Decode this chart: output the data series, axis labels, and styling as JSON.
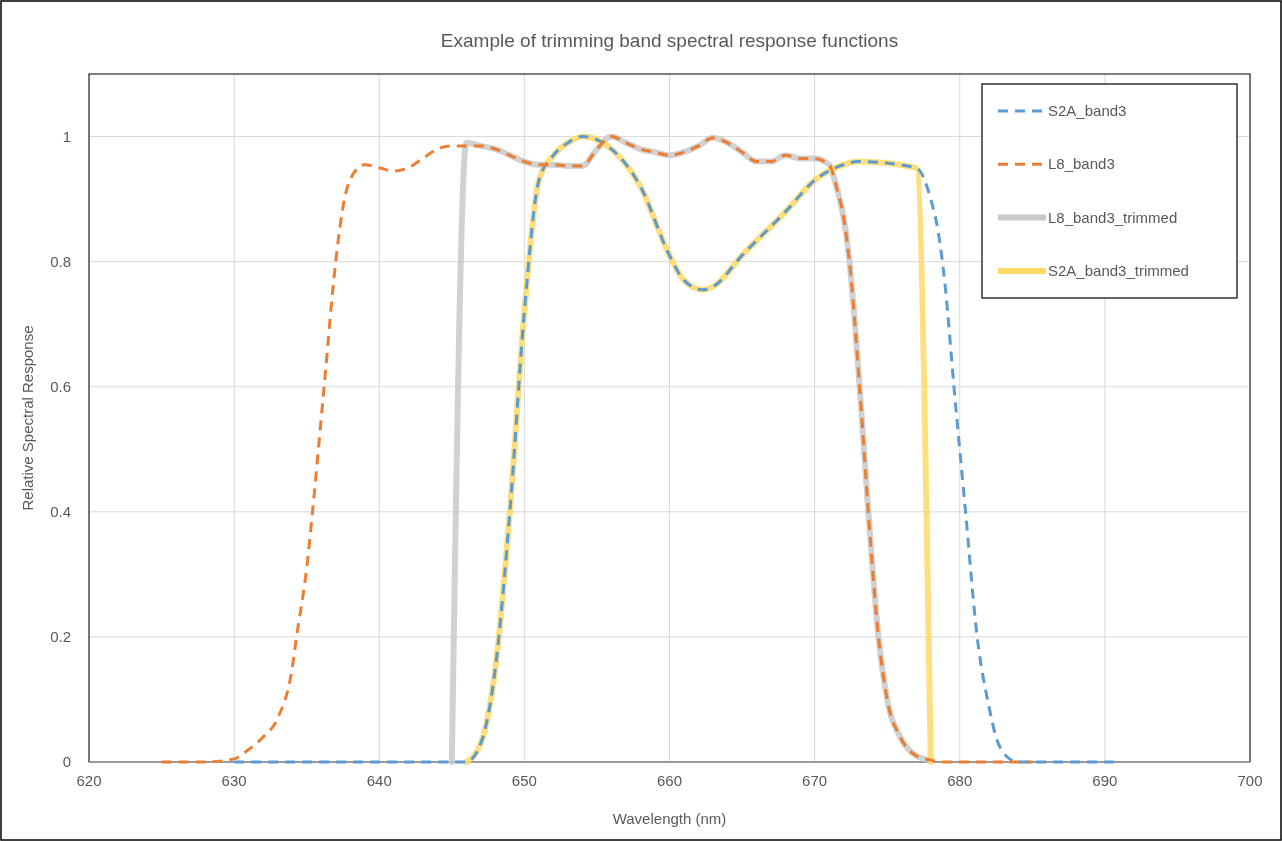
{
  "chart_data": {
    "type": "line",
    "title": "Example of trimming band spectral response functions",
    "xlabel": "Wavelength (nm)",
    "ylabel": "Relative Spectral Response",
    "xlim": [
      620,
      700
    ],
    "xticks": [
      620,
      630,
      640,
      650,
      660,
      670,
      680,
      690,
      700
    ],
    "ylim": [
      0,
      1.1
    ],
    "yticks": [
      0,
      0.2,
      0.4,
      0.6,
      0.8,
      1
    ],
    "grid": true,
    "legend": "top right",
    "marker": "none",
    "series": [
      {
        "name": "S2A_band3",
        "color": "#5b9bd5",
        "line_style": "dashed",
        "x": [
          630,
          646,
          647,
          648,
          649,
          650,
          651,
          652,
          653,
          654,
          656,
          658,
          660,
          661,
          662.3,
          663,
          665,
          668,
          670,
          672,
          673,
          677,
          678,
          678.5,
          679,
          679.6,
          680.4,
          681.2,
          682,
          682.5,
          683,
          684,
          691
        ],
        "values": [
          0,
          0,
          0.03,
          0.15,
          0.4,
          0.72,
          0.93,
          0.97,
          0.99,
          1.0,
          0.98,
          0.92,
          0.81,
          0.77,
          0.755,
          0.76,
          0.81,
          0.88,
          0.93,
          0.955,
          0.96,
          0.95,
          0.9,
          0.85,
          0.76,
          0.6,
          0.4,
          0.2,
          0.09,
          0.04,
          0.015,
          0,
          0
        ]
      },
      {
        "name": "L8_band3",
        "color": "#ed7d31",
        "line_style": "dashed",
        "x": [
          625,
          628,
          630,
          631,
          632,
          633,
          634,
          634.3,
          635,
          635.4,
          636.2,
          637,
          637.6,
          638.2,
          639,
          640,
          641,
          642,
          643,
          644,
          645,
          646,
          647,
          648,
          649,
          650,
          651,
          652,
          653,
          654,
          655,
          656,
          657,
          658,
          659,
          660,
          661,
          662,
          663,
          664,
          665,
          666,
          667,
          668,
          669,
          670,
          671,
          671.5,
          672,
          672.4,
          673.1,
          673.7,
          674.4,
          675,
          675.9,
          677,
          678,
          679,
          685
        ],
        "values": [
          0,
          0,
          0.005,
          0.02,
          0.04,
          0.07,
          0.15,
          0.2,
          0.31,
          0.4,
          0.6,
          0.8,
          0.9,
          0.94,
          0.955,
          0.95,
          0.945,
          0.95,
          0.965,
          0.98,
          0.985,
          0.985,
          0.985,
          0.98,
          0.97,
          0.96,
          0.955,
          0.955,
          0.953,
          0.953,
          0.98,
          1.0,
          0.99,
          0.98,
          0.975,
          0.97,
          0.975,
          0.985,
          0.998,
          0.99,
          0.975,
          0.96,
          0.96,
          0.97,
          0.965,
          0.965,
          0.955,
          0.92,
          0.87,
          0.8,
          0.6,
          0.4,
          0.2,
          0.1,
          0.04,
          0.01,
          0.003,
          0,
          0
        ]
      },
      {
        "name": "L8_band3_trimmed",
        "color": "#c9c9c9",
        "line_style": "solid",
        "x": [
          645,
          646,
          647,
          648,
          649,
          650,
          651,
          652,
          653,
          654,
          655,
          656,
          657,
          658,
          659,
          660,
          661,
          662,
          663,
          664,
          665,
          666,
          667,
          668,
          669,
          670,
          671,
          671.5,
          672,
          672.4,
          673.1,
          673.7,
          674.4,
          675,
          675.9,
          677,
          678
        ],
        "values": [
          0,
          0.99,
          0.985,
          0.98,
          0.97,
          0.96,
          0.955,
          0.955,
          0.953,
          0.953,
          0.98,
          1.0,
          0.99,
          0.98,
          0.975,
          0.97,
          0.975,
          0.985,
          0.998,
          0.99,
          0.975,
          0.96,
          0.96,
          0.97,
          0.965,
          0.965,
          0.955,
          0.92,
          0.87,
          0.8,
          0.6,
          0.4,
          0.2,
          0.1,
          0.04,
          0.01,
          0.003
        ]
      },
      {
        "name": "S2A_band3_trimmed",
        "color": "#ffd966",
        "line_style": "solid",
        "x": [
          646,
          647,
          648,
          649,
          650,
          651,
          652,
          653,
          654,
          656,
          658,
          660,
          661,
          662.3,
          663,
          665,
          668,
          670,
          672,
          673,
          677,
          678
        ],
        "values": [
          0,
          0.03,
          0.15,
          0.4,
          0.72,
          0.93,
          0.97,
          0.99,
          1.0,
          0.98,
          0.92,
          0.81,
          0.77,
          0.755,
          0.76,
          0.81,
          0.88,
          0.93,
          0.955,
          0.96,
          0.95,
          0
        ]
      }
    ]
  }
}
